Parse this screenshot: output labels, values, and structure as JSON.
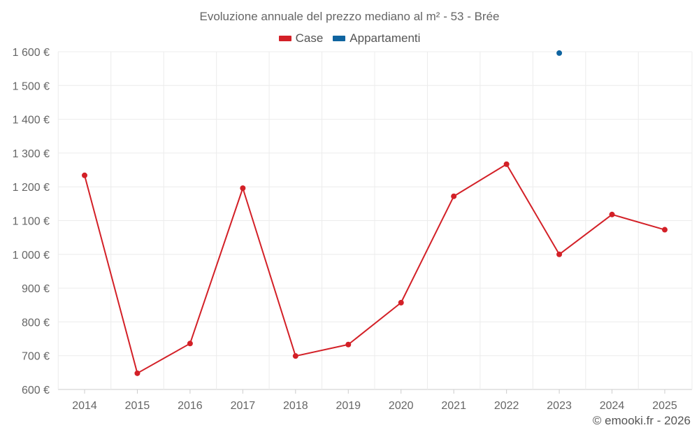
{
  "chart_data": {
    "type": "line",
    "title": "Evoluzione annuale del prezzo mediano al m² - 53 - Brée",
    "categories": [
      "2014",
      "2015",
      "2016",
      "2017",
      "2018",
      "2019",
      "2020",
      "2021",
      "2022",
      "2023",
      "2024",
      "2025"
    ],
    "ylim": [
      600,
      1600
    ],
    "yticks": [
      600,
      700,
      800,
      900,
      1000,
      1100,
      1200,
      1300,
      1400,
      1500,
      1600
    ],
    "ytick_labels": [
      "600 €",
      "700 €",
      "800 €",
      "900 €",
      "1 000 €",
      "1 100 €",
      "1 200 €",
      "1 300 €",
      "1 400 €",
      "1 500 €",
      "1 600 €"
    ],
    "grid": true,
    "legend_position": "top-center",
    "series": [
      {
        "name": "Case",
        "color": "#d32027",
        "values": [
          1234,
          648,
          736,
          1196,
          699,
          733,
          857,
          1172,
          1267,
          1000,
          1118,
          1073
        ]
      },
      {
        "name": "Appartamenti",
        "color": "#0f64a0",
        "values": [
          null,
          null,
          null,
          null,
          null,
          null,
          null,
          null,
          null,
          1596,
          null,
          null
        ]
      }
    ]
  },
  "credit": "© emooki.fr - 2026"
}
